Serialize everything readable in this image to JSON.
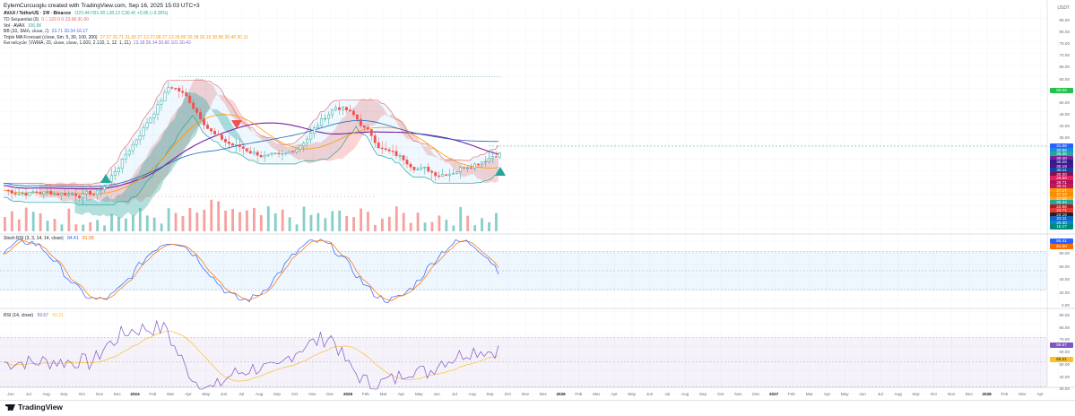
{
  "header": {
    "title": "EylemCurcuoglu created with TradingView.com, Sep 16, 2025 15:03 UTC+3"
  },
  "symbol_line": {
    "symbol": "AVAX / TetherUS · 1W · Binance",
    "ohlc": "O29.44  H31.00  L28.22  C30.45  +0.96 (+3.26%)"
  },
  "legends": [
    {
      "name": "TD Sequential (9)",
      "values": "0  1  120  0  0  23.98  30.00"
    },
    {
      "name": "Vol · AVAX",
      "values": "106.5K"
    },
    {
      "name": "BB (20, SMA, close, 2)",
      "values": "23.71  30.34  16.17"
    },
    {
      "name": "Triple MA Forecast (close, Sm, 5, 30, 100, 200)",
      "values": "27.27  29.71  31.08  27.13  27.08  27.13  29.80  30.28  30.19  30.86  30.40  30.11"
    },
    {
      "name": "Kernelcycle (VWMA, 20, close, close, 1.000, 2.100, 1, 12, 1, 21)",
      "values": "23.18  26.34  30.60  101  30.40"
    }
  ],
  "stoch": {
    "title": "Stoch RSI (3, 3, 14, 14, close)",
    "k": "84.41",
    "d": "81.58"
  },
  "rsi": {
    "title": "RSI (14, close)",
    "value": "59.67",
    "ma": "50.21"
  },
  "currency": "USDT",
  "price_axis": [
    "85.00",
    "80.00",
    "75.00",
    "70.00",
    "65.00",
    "60.00",
    "55.00",
    "50.00",
    "45.00",
    "40.00",
    "35.00",
    "30.00",
    "25.00",
    "20.00",
    "15.00",
    "10.00",
    "5.00"
  ],
  "price_tags": [
    {
      "label": "60.00",
      "color": "#21c34a"
    },
    {
      "label": "31.08",
      "color": "#2962ff"
    },
    {
      "label": "30.86",
      "color": "#1e88e5"
    },
    {
      "label": "30.45",
      "color": "#22ab94"
    },
    {
      "label": "30.40",
      "color": "#7b1fa2"
    },
    {
      "label": "30.28",
      "color": "#311b92"
    },
    {
      "label": "30.19",
      "color": "#4a148c"
    },
    {
      "label": "30.11",
      "color": "#0d47a1"
    },
    {
      "label": "30.00",
      "color": "#880e4f"
    },
    {
      "label": "29.80",
      "color": "#e91e63"
    },
    {
      "label": "29.71",
      "color": "#ad1457"
    },
    {
      "label": "28.11",
      "color": "#c2185b"
    },
    {
      "label": "27.27",
      "color": "#ff9800"
    },
    {
      "label": "27.13",
      "color": "#fb8c00"
    },
    {
      "label": "27.08",
      "color": "#ffa726"
    },
    {
      "label": "26.34",
      "color": "#26a69a"
    },
    {
      "label": "23.98",
      "color": "#b71c1c"
    },
    {
      "label": "23.71",
      "color": "#e53935"
    },
    {
      "label": "23.18",
      "color": "#212121"
    },
    {
      "label": "22.11",
      "color": "#1565c0"
    },
    {
      "label": "20.30",
      "color": "#0288d1"
    },
    {
      "label": "16.17",
      "color": "#00897b"
    }
  ],
  "stoch_axis": [
    "100.00",
    "80.00",
    "60.00",
    "40.00",
    "20.00",
    "0.00"
  ],
  "stoch_tags": [
    {
      "label": "84.41",
      "color": "#2962ff"
    },
    {
      "label": "81.58",
      "color": "#ff6d00"
    }
  ],
  "rsi_axis": [
    "90.00",
    "80.00",
    "70.00",
    "60.00",
    "50.00",
    "40.00",
    "30.00"
  ],
  "rsi_tags": [
    {
      "label": "59.67",
      "color": "#7e57c2"
    },
    {
      "label": "50.21",
      "color": "#fbc02d"
    }
  ],
  "x_labels": [
    "Jun",
    "Jul",
    "Aug",
    "Sep",
    "Oct",
    "Nov",
    "Dec",
    "2024",
    "Feb",
    "Mar",
    "Apr",
    "May",
    "Jun",
    "Jul",
    "Aug",
    "Sep",
    "Oct",
    "Nov",
    "Dec",
    "2025",
    "Feb",
    "Mar",
    "Apr",
    "May",
    "Jun",
    "Jul",
    "Aug",
    "Sep",
    "Oct",
    "Nov",
    "Dec",
    "2026",
    "Feb",
    "Mar",
    "Apr",
    "May",
    "Jun",
    "Jul",
    "Aug",
    "Sep",
    "Oct",
    "Nov",
    "Dec",
    "2027",
    "Feb",
    "Mar",
    "Apr",
    "May",
    "Jun",
    "Jul",
    "Aug",
    "Sep",
    "Oct",
    "Nov",
    "Dec",
    "2028",
    "Feb",
    "Mar",
    "Apr"
  ],
  "footer": {
    "brand": "TradingView"
  },
  "colors": {
    "up": "#26a69a",
    "down": "#ef5350",
    "grid": "#f0f3fa",
    "rsi_band": "#ede7f6",
    "stoch_band": "#e3f2fd"
  }
}
